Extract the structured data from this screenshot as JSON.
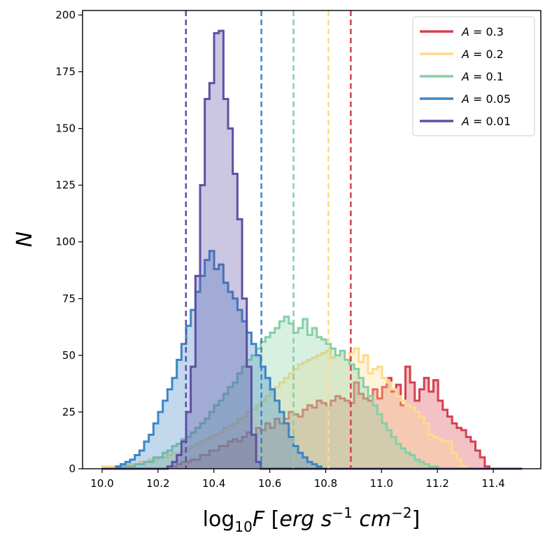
{
  "chart_data": {
    "type": "histogram",
    "xlabel": "log10F [erg s^-1 cm^-2]",
    "ylabel": "N",
    "xlim": [
      9.93,
      11.57
    ],
    "ylim": [
      0,
      202
    ],
    "x_ticks": [
      "10.0",
      "10.2",
      "10.4",
      "10.6",
      "10.8",
      "11.0",
      "11.2",
      "11.4"
    ],
    "y_ticks": [
      "0",
      "25",
      "50",
      "75",
      "100",
      "125",
      "150",
      "175",
      "200"
    ],
    "grid": false,
    "legend_position": "top-right",
    "bin_width": 0.0167,
    "bin_start": 10.0,
    "series": [
      {
        "name": "A=0.3",
        "label_prefix": "A",
        "label_value": "= 0.3",
        "color": "#d6404e",
        "marker_line": 10.89,
        "counts": [
          0,
          0,
          0,
          0,
          0,
          0,
          0,
          0,
          0,
          0,
          0,
          0,
          0,
          0,
          1,
          1,
          2,
          3,
          3,
          4,
          4,
          6,
          6,
          8,
          8,
          10,
          10,
          12,
          13,
          12,
          14,
          16,
          15,
          18,
          17,
          20,
          18,
          22,
          20,
          22,
          25,
          24,
          23,
          26,
          28,
          27,
          30,
          29,
          28,
          30,
          32,
          31,
          30,
          29,
          38,
          33,
          31,
          30,
          35,
          31,
          36,
          40,
          34,
          37,
          28,
          45,
          38,
          30,
          35,
          40,
          34,
          39,
          30,
          26,
          23,
          20,
          18,
          17,
          14,
          12,
          8,
          5,
          1,
          0,
          0,
          0,
          0,
          0,
          0,
          0
        ]
      },
      {
        "name": "A=0.2",
        "label_prefix": "A",
        "label_value": "= 0.2",
        "color": "#fedb8b",
        "marker_line": 10.81,
        "counts": [
          1,
          1,
          1,
          1,
          1,
          2,
          2,
          2,
          3,
          3,
          4,
          4,
          5,
          5,
          6,
          7,
          7,
          8,
          9,
          10,
          11,
          12,
          13,
          14,
          15,
          16,
          18,
          19,
          20,
          22,
          23,
          25,
          26,
          28,
          30,
          32,
          34,
          36,
          38,
          40,
          42,
          44,
          46,
          47,
          48,
          49,
          50,
          51,
          52,
          49,
          50,
          52,
          48,
          51,
          53,
          47,
          50,
          42,
          44,
          45,
          40,
          38,
          35,
          32,
          30,
          28,
          27,
          25,
          23,
          20,
          15,
          14,
          13,
          12,
          12,
          7,
          4,
          1,
          0,
          0,
          0,
          0,
          0,
          0,
          0,
          0,
          0,
          0,
          0,
          0
        ]
      },
      {
        "name": "A=0.1",
        "label_prefix": "A",
        "label_value": "= 0.1",
        "color": "#86cfa5",
        "marker_line": 10.685,
        "counts": [
          0,
          0,
          0,
          1,
          1,
          1,
          1,
          2,
          2,
          3,
          3,
          5,
          5,
          7,
          8,
          10,
          11,
          13,
          14,
          16,
          18,
          20,
          22,
          25,
          28,
          30,
          33,
          36,
          38,
          42,
          45,
          48,
          50,
          53,
          56,
          58,
          60,
          62,
          65,
          67,
          64,
          60,
          62,
          66,
          59,
          62,
          58,
          57,
          55,
          53,
          50,
          52,
          48,
          46,
          44,
          40,
          36,
          32,
          28,
          24,
          20,
          17,
          14,
          11,
          9,
          7,
          6,
          4,
          3,
          2,
          1,
          1,
          0,
          0,
          0,
          0,
          0,
          0,
          0,
          0,
          0,
          0,
          0,
          0,
          0,
          0,
          0,
          0,
          0,
          0
        ]
      },
      {
        "name": "A=0.05",
        "label_prefix": "A",
        "label_value": "= 0.05",
        "color": "#3d85c6",
        "marker_line": 10.57,
        "counts": [
          0,
          0,
          0,
          1,
          2,
          3,
          4,
          6,
          8,
          12,
          15,
          20,
          25,
          30,
          35,
          40,
          48,
          55,
          63,
          70,
          78,
          85,
          92,
          96,
          88,
          90,
          82,
          78,
          75,
          70,
          65,
          60,
          55,
          50,
          45,
          40,
          35,
          30,
          25,
          20,
          14,
          10,
          7,
          5,
          3,
          2,
          1,
          0,
          0,
          0,
          0,
          0,
          0,
          0,
          0,
          0,
          0,
          0,
          0,
          0,
          0,
          0,
          0,
          0,
          0,
          0,
          0,
          0,
          0,
          0,
          0,
          0,
          0,
          0,
          0,
          0,
          0,
          0,
          0,
          0,
          0,
          0,
          0,
          0,
          0,
          0,
          0,
          0,
          0,
          0
        ]
      },
      {
        "name": "A=0.01",
        "label_prefix": "A",
        "label_value": "= 0.01",
        "color": "#5e4fa2",
        "marker_line": 10.3,
        "counts": [
          0,
          0,
          0,
          0,
          0,
          0,
          0,
          0,
          0,
          0,
          0,
          0,
          0,
          0,
          1,
          3,
          6,
          12,
          25,
          45,
          85,
          125,
          163,
          170,
          192,
          193,
          163,
          150,
          130,
          110,
          75,
          45,
          15,
          3,
          0,
          0,
          0,
          0,
          0,
          0,
          0,
          0,
          0,
          0,
          0,
          0,
          0,
          0,
          0,
          0,
          0,
          0,
          0,
          0,
          0,
          0,
          0,
          0,
          0,
          0,
          0,
          0,
          0,
          0,
          0,
          0,
          0,
          0,
          0,
          0,
          0,
          0,
          0,
          0,
          0,
          0,
          0,
          0,
          0,
          0,
          0,
          0,
          0,
          0,
          0,
          0,
          0,
          0,
          0,
          0
        ]
      }
    ]
  }
}
